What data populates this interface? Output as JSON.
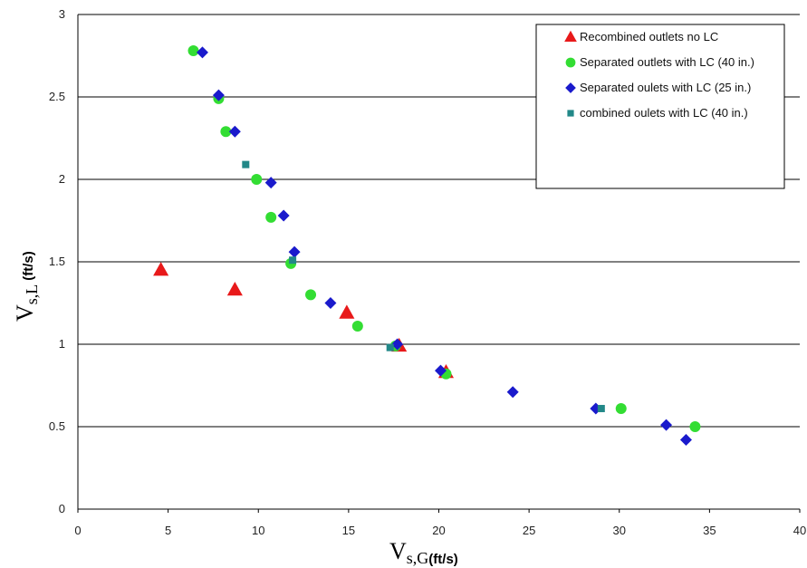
{
  "chart_data": {
    "type": "scatter",
    "xlabel": {
      "main": "V",
      "sub": "s,G",
      "unit": "(ft/s)"
    },
    "ylabel": {
      "main": "V",
      "sub": "s,L",
      "unit": "(ft/s)"
    },
    "xlim": [
      0,
      40
    ],
    "ylim": [
      0,
      3
    ],
    "x_ticks": [
      "0",
      "5",
      "10",
      "15",
      "20",
      "25",
      "30",
      "35",
      "40"
    ],
    "y_ticks": [
      "0",
      "0.5",
      "1",
      "1.5",
      "2",
      "2.5",
      "3"
    ],
    "grid": "horizontal",
    "legend_position": "top-right",
    "series": [
      {
        "name": "Recombined outlets no LC",
        "marker": "triangle",
        "color": "#e8191a",
        "points": [
          [
            4.6,
            1.45
          ],
          [
            8.7,
            1.33
          ],
          [
            14.9,
            1.19
          ],
          [
            17.8,
            0.99
          ],
          [
            20.4,
            0.83
          ]
        ]
      },
      {
        "name": "Separated outlets with LC (40 in.)",
        "marker": "circle",
        "color": "#33dd33",
        "points": [
          [
            6.4,
            2.78
          ],
          [
            7.8,
            2.49
          ],
          [
            8.2,
            2.29
          ],
          [
            9.9,
            2.0
          ],
          [
            10.7,
            1.77
          ],
          [
            11.8,
            1.49
          ],
          [
            12.9,
            1.3
          ],
          [
            15.5,
            1.11
          ],
          [
            17.6,
            0.99
          ],
          [
            20.4,
            0.82
          ],
          [
            30.1,
            0.61
          ],
          [
            34.2,
            0.5
          ]
        ]
      },
      {
        "name": "Separated oulets with LC (25 in.)",
        "marker": "diamond",
        "color": "#1a1acc",
        "points": [
          [
            6.9,
            2.77
          ],
          [
            7.8,
            2.51
          ],
          [
            8.7,
            2.29
          ],
          [
            10.7,
            1.98
          ],
          [
            11.4,
            1.78
          ],
          [
            12.0,
            1.56
          ],
          [
            14.0,
            1.25
          ],
          [
            17.7,
            1.0
          ],
          [
            20.1,
            0.84
          ],
          [
            24.1,
            0.71
          ],
          [
            28.7,
            0.61
          ],
          [
            32.6,
            0.51
          ],
          [
            33.7,
            0.42
          ]
        ]
      },
      {
        "name": "combined oulets with LC (40 in.)",
        "marker": "square",
        "color": "#228888",
        "points": [
          [
            9.3,
            2.09
          ],
          [
            11.9,
            1.51
          ],
          [
            17.3,
            0.98
          ],
          [
            29.0,
            0.61
          ]
        ]
      }
    ]
  }
}
